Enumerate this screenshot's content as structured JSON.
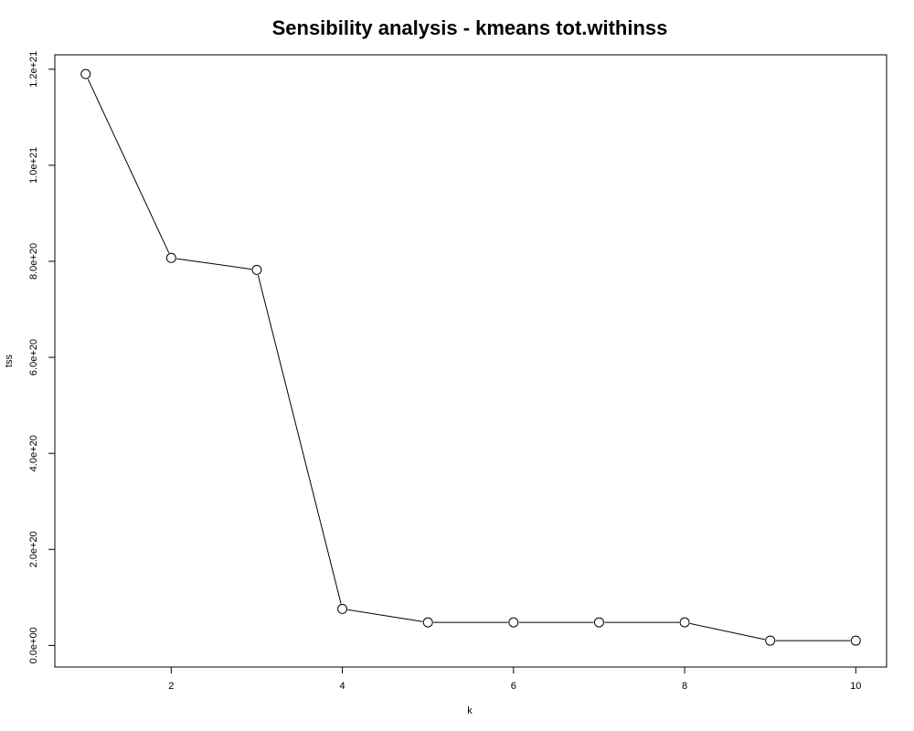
{
  "chart_data": {
    "type": "line",
    "title": "Sensibility analysis - kmeans tot.withinss",
    "xlabel": "k",
    "ylabel": "tss",
    "x": [
      1,
      2,
      3,
      4,
      5,
      6,
      7,
      8,
      9,
      10
    ],
    "series": [
      {
        "values": [
          1.19e+21,
          8.07e+20,
          7.82e+20,
          7.6e+19,
          4.8e+19,
          4.8e+19,
          4.8e+19,
          4.8e+19,
          1e+19,
          1e+19
        ]
      }
    ],
    "xlim": [
      0.64,
      10.36
    ],
    "ylim": [
      -4.5e+19,
      1.23e+21
    ],
    "xticks": [
      2,
      4,
      6,
      8,
      10
    ],
    "xtick_labels": [
      "2",
      "4",
      "6",
      "8",
      "10"
    ],
    "yticks": [
      0,
      2e+20,
      4e+20,
      6e+20,
      8e+20,
      1e+21,
      1.2e+21
    ],
    "ytick_labels": [
      "0.0e+00",
      "2.0e+20",
      "4.0e+20",
      "6.0e+20",
      "8.0e+20",
      "1.0e+21",
      "1.2e+21"
    ],
    "marker": "open-circle",
    "line_color": "#000000",
    "grid": false,
    "legend": "none"
  }
}
